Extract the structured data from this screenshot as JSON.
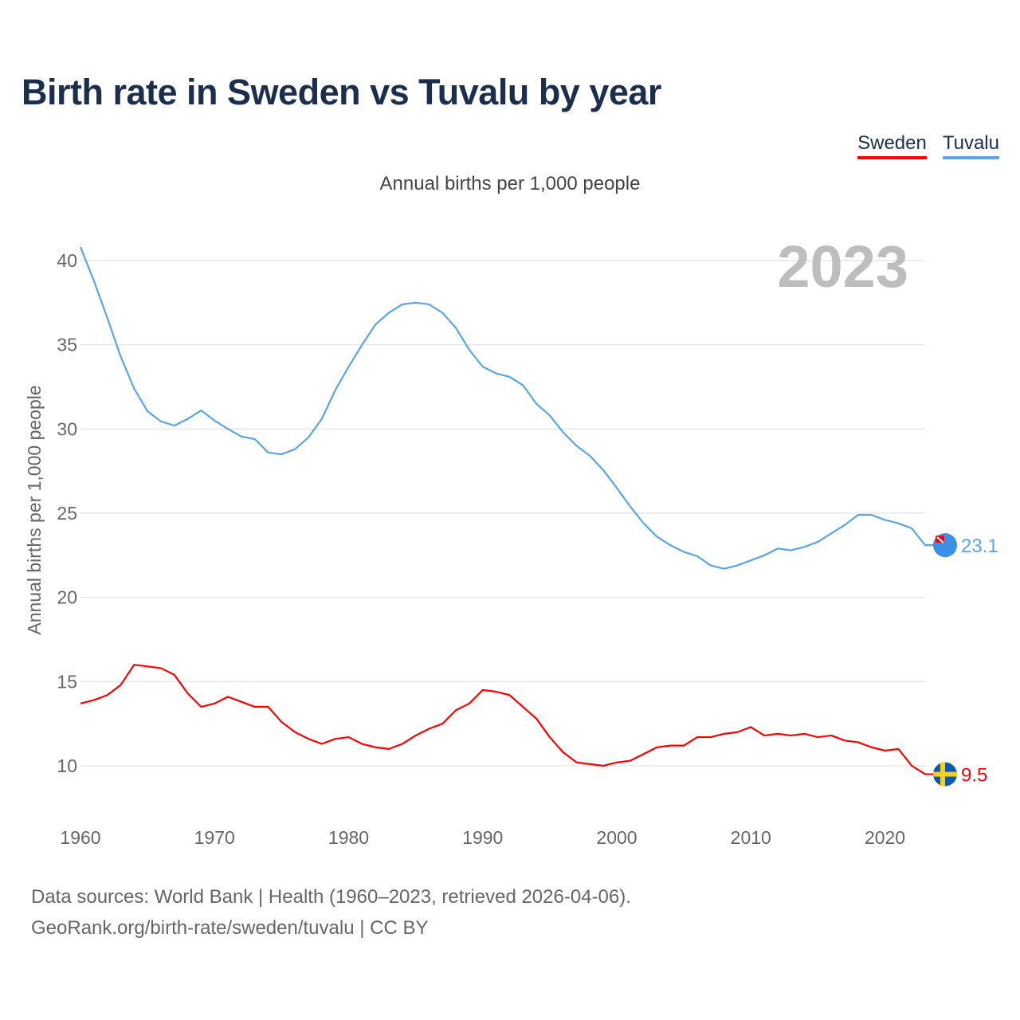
{
  "title": "Birth rate in Sweden vs Tuvalu by year",
  "subtitle": "Annual births per 1,000 people",
  "legend": [
    {
      "label": "Sweden",
      "color": "#ff0000"
    },
    {
      "label": "Tuvalu",
      "color": "#5aa5ea"
    }
  ],
  "year_watermark": "2023",
  "footer": {
    "line1": "Data sources: World Bank | Health (1960–2023, retrieved 2026-04-06).",
    "line2": "GeoRank.org/birth-rate/sweden/tuvalu | CC BY"
  },
  "chart_data": {
    "type": "line",
    "title": "Birth rate in Sweden vs Tuvalu by year",
    "xlabel": "",
    "ylabel": "Annual births per 1,000 people",
    "xlim": [
      1960,
      2023
    ],
    "ylim": [
      7.5,
      41
    ],
    "yticks": [
      10,
      15,
      20,
      25,
      30,
      35,
      40
    ],
    "xticks": [
      1960,
      1970,
      1980,
      1990,
      2000,
      2010,
      2020
    ],
    "grid": true,
    "legend_position": "top-right",
    "x_start": 1960,
    "series": [
      {
        "name": "Sweden",
        "color": "#ff0000",
        "end_label": "9.5",
        "values": [
          13.7,
          13.9,
          14.2,
          14.8,
          16.0,
          15.9,
          15.8,
          15.4,
          14.3,
          13.5,
          13.7,
          14.1,
          13.8,
          13.5,
          13.5,
          12.6,
          12.0,
          11.6,
          11.3,
          11.6,
          11.7,
          11.3,
          11.1,
          11.0,
          11.3,
          11.8,
          12.2,
          12.5,
          13.3,
          13.7,
          14.5,
          14.4,
          14.2,
          13.5,
          12.8,
          11.7,
          10.8,
          10.2,
          10.1,
          10.0,
          10.2,
          10.3,
          10.7,
          11.1,
          11.2,
          11.2,
          11.7,
          11.7,
          11.9,
          12.0,
          12.3,
          11.8,
          11.9,
          11.8,
          11.9,
          11.7,
          11.8,
          11.5,
          11.4,
          11.1,
          10.9,
          11.0,
          10.0,
          9.5
        ]
      },
      {
        "name": "Tuvalu",
        "color": "#5aa5ea",
        "end_label": "23.1",
        "values": [
          40.8,
          38.8,
          36.6,
          34.3,
          32.4,
          31.05,
          30.45,
          30.2,
          30.6,
          31.1,
          30.5,
          30.0,
          29.55,
          29.4,
          28.6,
          28.5,
          28.8,
          29.5,
          30.6,
          32.3,
          33.7,
          35.0,
          36.2,
          36.9,
          37.4,
          37.5,
          37.4,
          36.9,
          36.0,
          34.7,
          33.7,
          33.3,
          33.1,
          32.6,
          31.5,
          30.8,
          29.8,
          29.0,
          28.4,
          27.55,
          26.5,
          25.4,
          24.4,
          23.6,
          23.1,
          22.7,
          22.45,
          21.9,
          21.7,
          21.9,
          22.2,
          22.5,
          22.9,
          22.8,
          23.0,
          23.3,
          23.8,
          24.3,
          24.9,
          24.9,
          24.6,
          24.4,
          24.1,
          23.1
        ]
      }
    ]
  }
}
